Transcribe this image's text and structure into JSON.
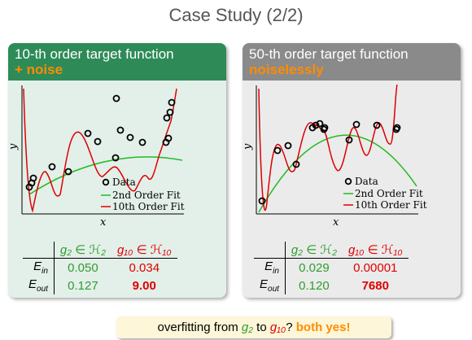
{
  "title": "Case Study (2/2)",
  "panels": [
    {
      "heading_line1": "10-th order target function",
      "heading_line2": "+ noise",
      "axis_x": "x",
      "axis_y": "y",
      "legend": [
        "Data",
        "2nd Order Fit",
        "10th Order Fit"
      ],
      "table": {
        "col_g2": "g₂ ∈ ℋ₂",
        "col_g10": "g₁₀ ∈ ℋ₁₀",
        "row_in": "E",
        "row_in_sub": "in",
        "row_out": "E",
        "row_out_sub": "out",
        "ein_g2": "0.050",
        "ein_g10": "0.034",
        "eout_g2": "0.127",
        "eout_g10": "9.00"
      }
    },
    {
      "heading_line1": "50-th order target function",
      "heading_line2": "noiselessly",
      "axis_x": "x",
      "axis_y": "y",
      "legend": [
        "Data",
        "2nd Order Fit",
        "10th Order Fit"
      ],
      "table": {
        "col_g2": "g₂ ∈ ℋ₂",
        "col_g10": "g₁₀ ∈ ℋ₁₀",
        "row_in": "E",
        "row_in_sub": "in",
        "row_out": "E",
        "row_out_sub": "out",
        "ein_g2": "0.029",
        "ein_g10": "0.00001",
        "eout_g2": "0.120",
        "eout_g10": "7680"
      }
    }
  ],
  "bottom": {
    "prefix": "overfitting from ",
    "g2": "g₂",
    "mid": " to ",
    "g10": "g₁₀",
    "q": "? ",
    "answer": "both yes!"
  },
  "colors": {
    "green_fit": "#22bb22",
    "red_fit": "#dd0000",
    "header_left": "#2e8b57",
    "header_right": "#8a8a8a",
    "accent": "#ff8c00"
  }
}
